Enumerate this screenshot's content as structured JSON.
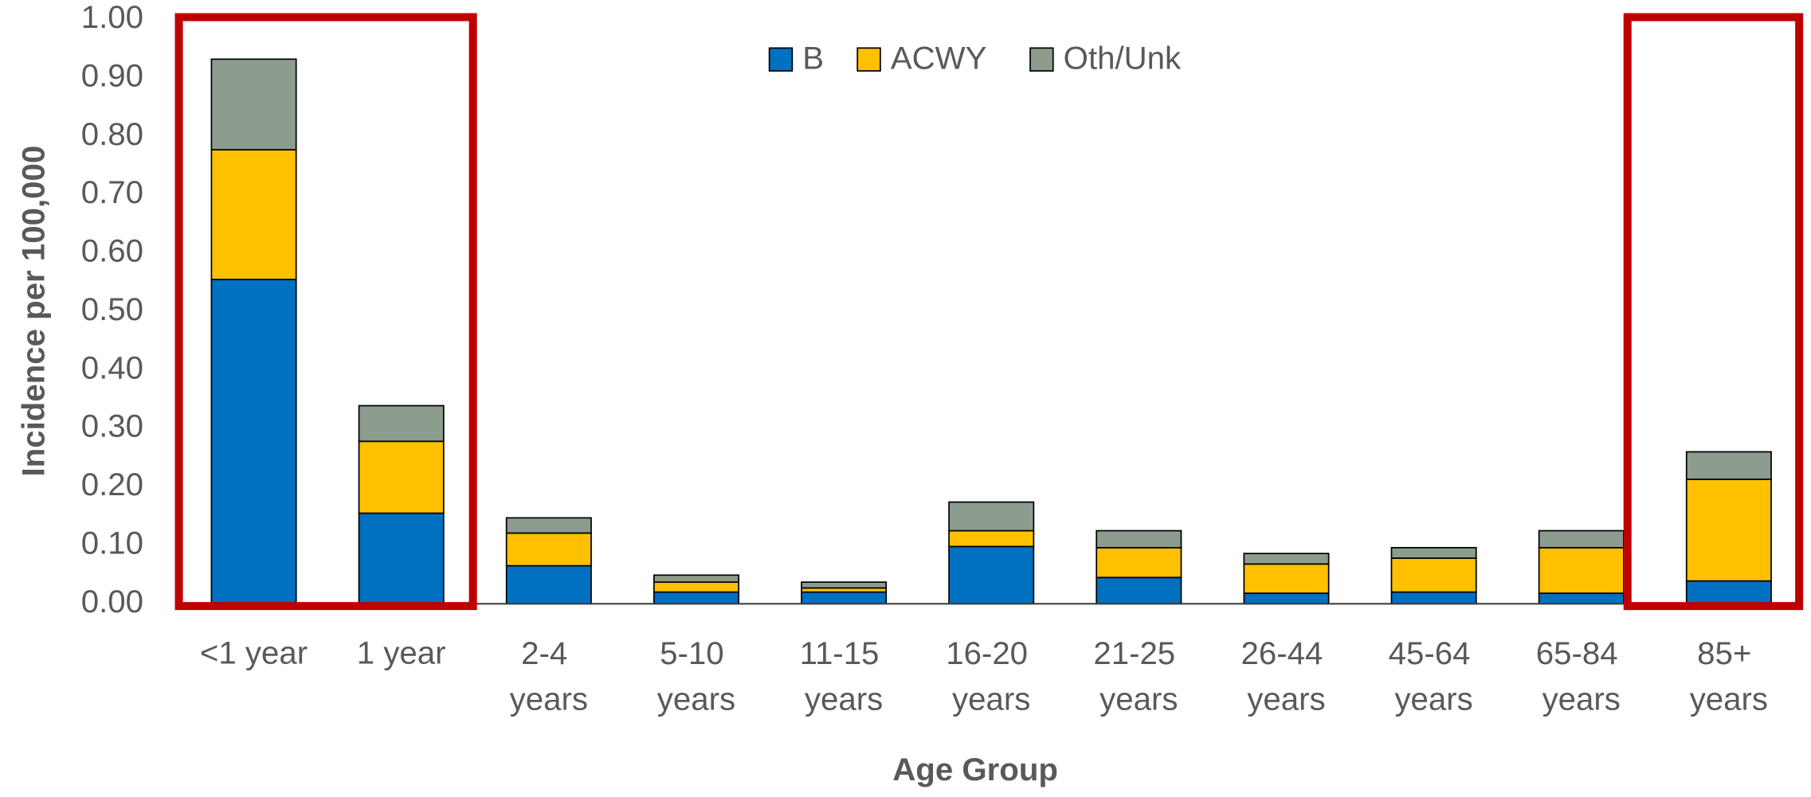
{
  "chart_data": {
    "type": "stacked_bar",
    "x_label": "Age Group",
    "y_label": "Incidence per 100,000",
    "categories": [
      "<1 year",
      "1 year",
      "2-4 years",
      "5-10 years",
      "11-15 years",
      "16-20 years",
      "21-25 years",
      "26-44 years",
      "45-64 years",
      "65-84 years",
      "85+ years"
    ],
    "series": [
      {
        "name": "B",
        "color": "#0070c0",
        "values": [
          0.555,
          0.155,
          0.065,
          0.02,
          0.02,
          0.098,
          0.045,
          0.018,
          0.02,
          0.018,
          0.039
        ]
      },
      {
        "name": "ACWY",
        "color": "#ffc000",
        "values": [
          0.222,
          0.123,
          0.056,
          0.017,
          0.007,
          0.027,
          0.051,
          0.05,
          0.058,
          0.078,
          0.174
        ]
      },
      {
        "name": "Oth/Unk",
        "color": "#8c9c8f",
        "values": [
          0.155,
          0.061,
          0.026,
          0.012,
          0.01,
          0.049,
          0.029,
          0.018,
          0.018,
          0.029,
          0.047
        ]
      }
    ],
    "ylim": [
      0,
      1
    ],
    "yticks": [
      {
        "value": 0,
        "label": "0.00"
      },
      {
        "value": 0.1,
        "label": "0.10"
      },
      {
        "value": 0.2,
        "label": "0.20"
      },
      {
        "value": 0.3,
        "label": "0.30"
      },
      {
        "value": 0.4,
        "label": "0.40"
      },
      {
        "value": 0.5,
        "label": "0.50"
      },
      {
        "value": 0.6,
        "label": "0.60"
      },
      {
        "value": 0.7,
        "label": "0.70"
      },
      {
        "value": 0.8,
        "label": "0.80"
      },
      {
        "value": 0.9,
        "label": "0.90"
      },
      {
        "value": 1,
        "label": "1.00"
      }
    ],
    "legend": "top",
    "grid": false
  }
}
